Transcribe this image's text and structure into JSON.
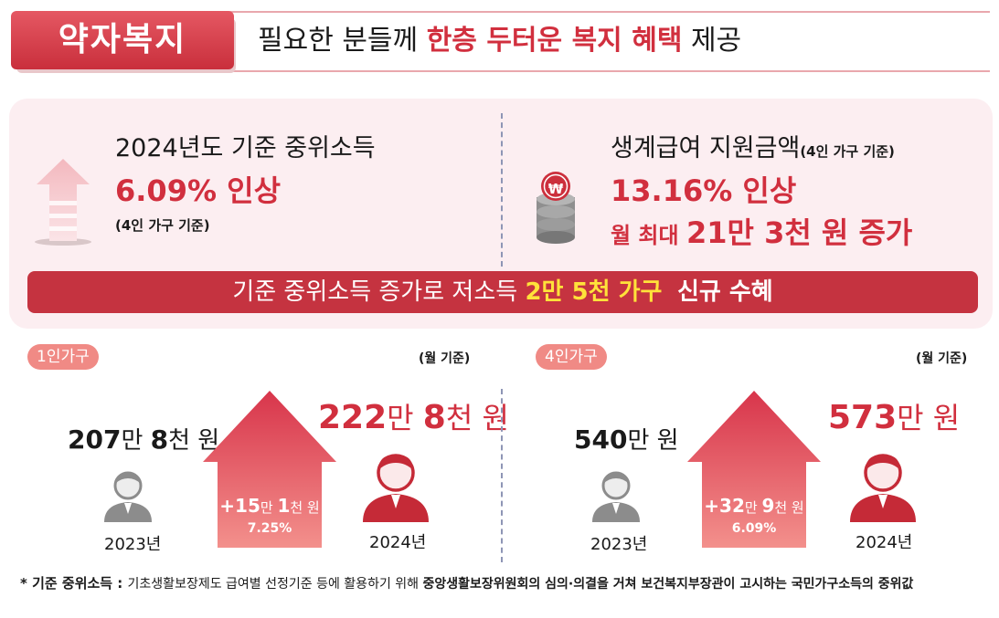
{
  "header": {
    "badge": "약자복지",
    "headline_pre": "필요한 분들께 ",
    "headline_highlight": "한층 두터운 복지 혜택",
    "headline_post": " 제공"
  },
  "summary": {
    "left": {
      "title": "2024년도 기준 중위소득",
      "value": "6.09% 인상",
      "note": "(4인 가구 기준)"
    },
    "right": {
      "title": "생계급여 지원금액",
      "title_note": "(4인 가구 기준)",
      "value1": "13.16% 인상",
      "value2_pre": "월 최대 ",
      "value2": "21만 3천 원 증가"
    },
    "coin_symbol": "₩",
    "banner": {
      "pre": "기준 중위소득 증가로 저소득 ",
      "highlight": "2만 5천 가구",
      "post": "신규 수혜"
    }
  },
  "one_person": {
    "pill": "1인가구",
    "note": "(월 기준)",
    "y2023": {
      "n1": "207",
      "u1": "만 ",
      "n2": "8",
      "u2": "천 원",
      "year": "2023년"
    },
    "y2024": {
      "n1": "222",
      "u1": "만 ",
      "n2": "8",
      "u2": "천 원",
      "year": "2024년"
    },
    "arrow": {
      "n1": "+15",
      "u1": "만 ",
      "n2": "1",
      "u2": "천 원",
      "pct": "7.25%"
    }
  },
  "four_person": {
    "pill": "4인가구",
    "note": "(월 기준)",
    "y2023": {
      "n1": "540",
      "u1": "만 원",
      "year": "2023년"
    },
    "y2024": {
      "n1": "573",
      "u1": "만 원",
      "year": "2024년"
    },
    "arrow": {
      "n1": "+32",
      "u1": "만 ",
      "n2": "9",
      "u2": "천 원",
      "pct": "6.09%"
    }
  },
  "footnote": {
    "label": "* 기준 중위소득 : ",
    "text1": "기초생활보장제도 급여별 선정기준 등에 활용하기 위해 ",
    "text2": "중앙생활보장위원회의 심의·의결을 거쳐 보건복지부장관이 고시하는 국민가구소득의 중위값"
  },
  "colors": {
    "accent": "#d12f3e",
    "banner": "#c53340",
    "panel": "#fceef1",
    "highlight": "#ffe23a"
  }
}
